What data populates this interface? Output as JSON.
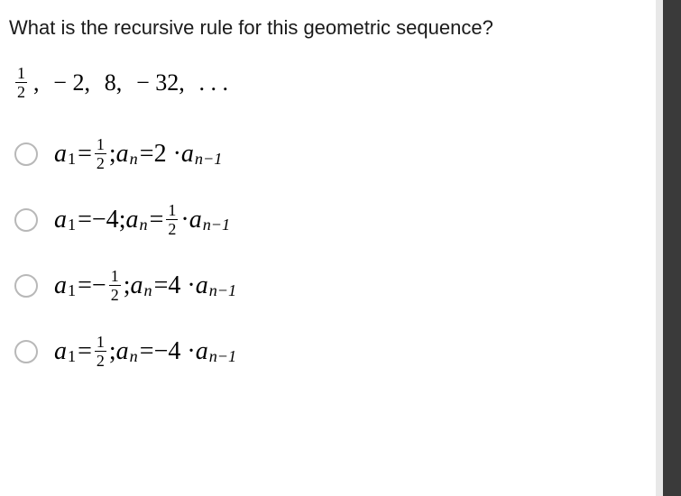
{
  "question": {
    "text": "What is the recursive rule for this geometric sequence?",
    "fontsize": 22,
    "color": "#1a1a1a"
  },
  "sequence": {
    "frac_num": "1",
    "frac_den": "2",
    "term2": "− 2,",
    "term3": "8,",
    "term4": "− 32,",
    "ellipsis": ". . .",
    "fontsize": 26,
    "color": "#000000"
  },
  "options": [
    {
      "a1_lhs": "a",
      "a1_sub": "1",
      "eq": " = ",
      "a1_rhs_frac_num": "1",
      "a1_rhs_frac_den": "2",
      "a1_rhs_neg": "",
      "a1_rhs_plain": "",
      "sep": ";  ",
      "an_lhs": "a",
      "an_sub": "n",
      "an_rhs_coef": "2 · ",
      "an_rhs_a": "a",
      "an_rhs_sub": "n−1",
      "an_rhs_frac_num": "",
      "an_rhs_frac_den": ""
    },
    {
      "a1_lhs": "a",
      "a1_sub": "1",
      "eq": " = ",
      "a1_rhs_frac_num": "",
      "a1_rhs_frac_den": "",
      "a1_rhs_neg": "",
      "a1_rhs_plain": "−4",
      "sep": ";  ",
      "an_lhs": "a",
      "an_sub": "n",
      "an_rhs_coef": "",
      "an_rhs_a": "a",
      "an_rhs_sub": "n−1",
      "an_rhs_frac_num": "1",
      "an_rhs_frac_den": "2"
    },
    {
      "a1_lhs": "a",
      "a1_sub": "1",
      "eq": " = ",
      "a1_rhs_frac_num": "1",
      "a1_rhs_frac_den": "2",
      "a1_rhs_neg": "−",
      "a1_rhs_plain": "",
      "sep": ";  ",
      "an_lhs": "a",
      "an_sub": "n",
      "an_rhs_coef": "4 · ",
      "an_rhs_a": "a",
      "an_rhs_sub": "n−1",
      "an_rhs_frac_num": "",
      "an_rhs_frac_den": ""
    },
    {
      "a1_lhs": "a",
      "a1_sub": "1",
      "eq": " = ",
      "a1_rhs_frac_num": "1",
      "a1_rhs_frac_den": "2",
      "a1_rhs_neg": "",
      "a1_rhs_plain": "",
      "sep": ";  ",
      "an_lhs": "a",
      "an_sub": "n",
      "an_rhs_coef": "−4 · ",
      "an_rhs_a": "a",
      "an_rhs_sub": "n−1",
      "an_rhs_frac_num": "",
      "an_rhs_frac_den": ""
    }
  ],
  "styling": {
    "radio_border": "#b8b8b8",
    "radio_size": 26,
    "math_fontsize": 28,
    "math_color": "#000000",
    "option_gap": 34,
    "background": "#ffffff",
    "sidebar_dark": "#3a3a3a",
    "sidebar_light": "#e8e8e8"
  }
}
